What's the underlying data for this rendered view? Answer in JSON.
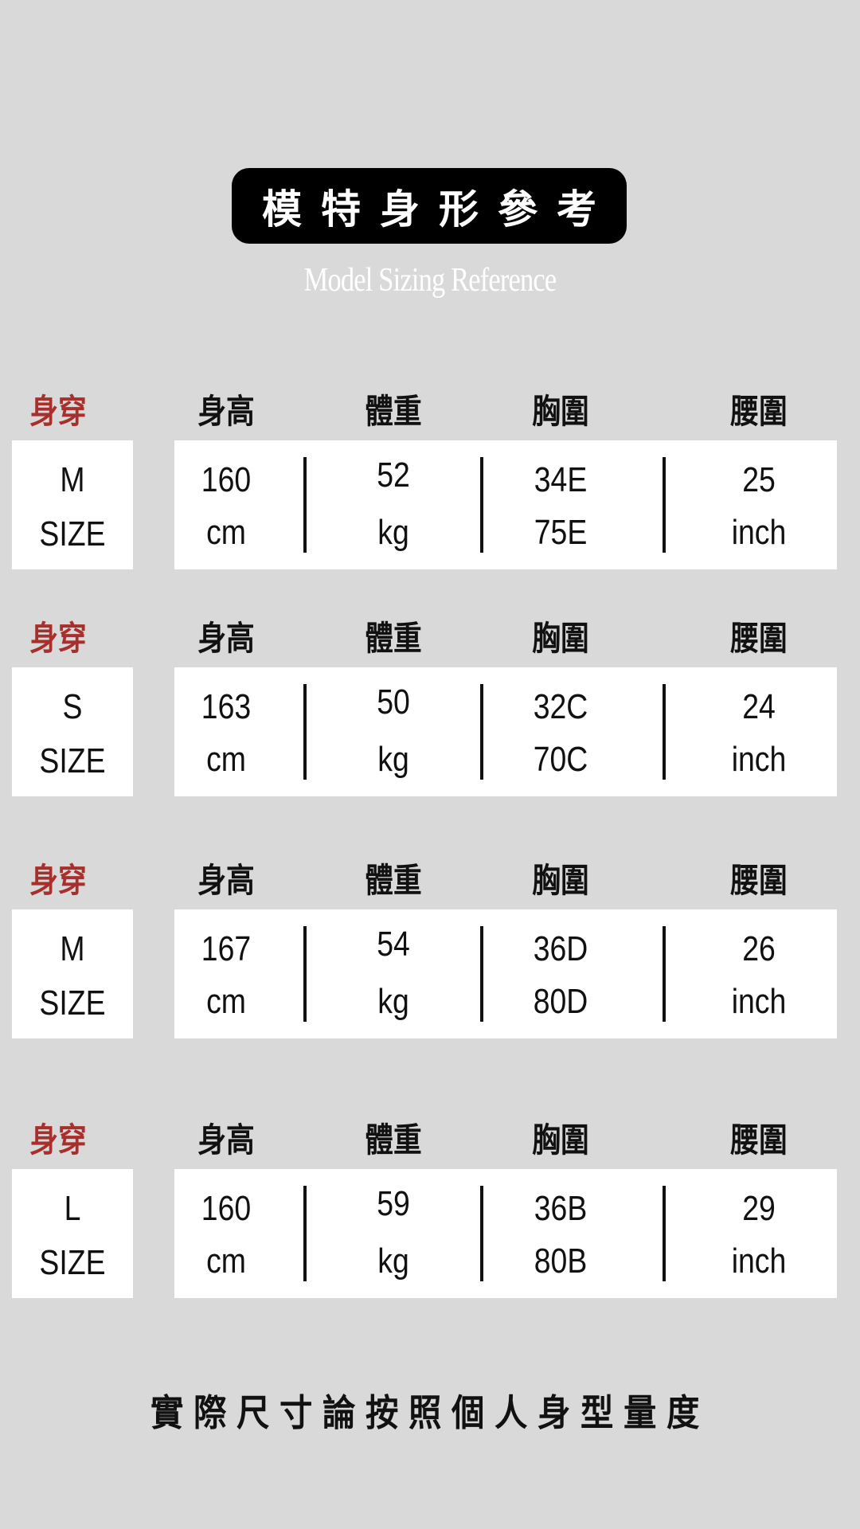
{
  "title": "模特身形參考",
  "subtitle": "Model Sizing Reference",
  "headers": {
    "wear": "身穿",
    "height": "身高",
    "weight": "體重",
    "bust": "胸圍",
    "waist": "腰圍"
  },
  "colors": {
    "background": "#d9d9d9",
    "accent_red": "#a8302c",
    "pill": "#000000"
  },
  "rows": [
    {
      "size": "M",
      "size_unit": "SIZE",
      "height": "160",
      "height_unit": "cm",
      "weight": "52",
      "weight_unit": "kg",
      "bust1": "34E",
      "bust2": "75E",
      "waist": "25",
      "waist_unit": "inch"
    },
    {
      "size": "S",
      "size_unit": "SIZE",
      "height": "163",
      "height_unit": "cm",
      "weight": "50",
      "weight_unit": "kg",
      "bust1": "32C",
      "bust2": "70C",
      "waist": "24",
      "waist_unit": "inch"
    },
    {
      "size": "M",
      "size_unit": "SIZE",
      "height": "167",
      "height_unit": "cm",
      "weight": "54",
      "weight_unit": "kg",
      "bust1": "36D",
      "bust2": "80D",
      "waist": "26",
      "waist_unit": "inch"
    },
    {
      "size": "L",
      "size_unit": "SIZE",
      "height": "160",
      "height_unit": "cm",
      "weight": "59",
      "weight_unit": "kg",
      "bust1": "36B",
      "bust2": "80B",
      "waist": "29",
      "waist_unit": "inch"
    }
  ],
  "footer": "實際尺寸論按照個人身型量度"
}
